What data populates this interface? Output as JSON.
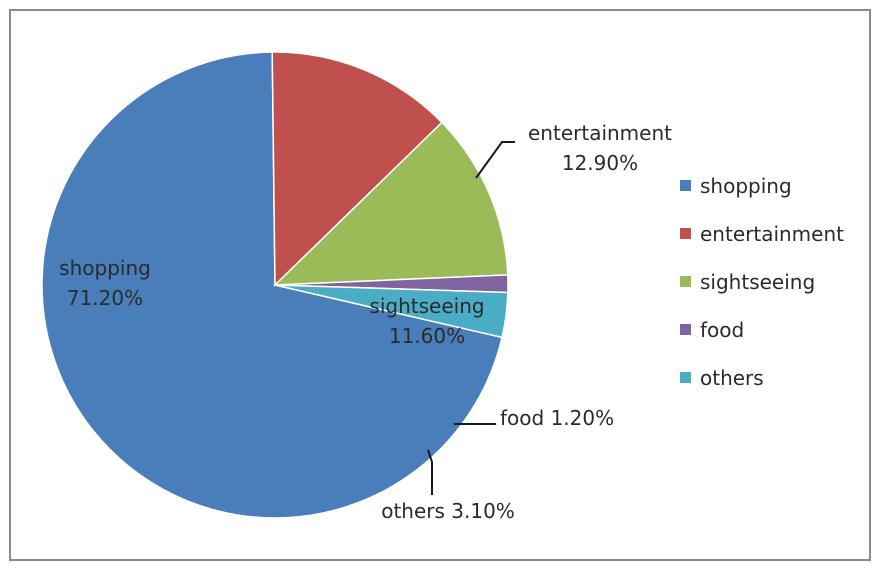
{
  "chart_data": {
    "type": "pie",
    "title": "",
    "slices": [
      {
        "label": "shopping",
        "value": 71.2,
        "display": "71.20%",
        "color": "#4a7ebb"
      },
      {
        "label": "entertainment",
        "value": 12.9,
        "display": "12.90%",
        "color": "#c0504d"
      },
      {
        "label": "sightseeing",
        "value": 11.6,
        "display": "11.60%",
        "color": "#9bbb59"
      },
      {
        "label": "food",
        "value": 1.2,
        "display": "1.20%",
        "color": "#8064a2"
      },
      {
        "label": "others",
        "value": 3.1,
        "display": "3.10%",
        "color": "#4bacc6"
      }
    ],
    "legend": {
      "position": "right",
      "entries": [
        "shopping",
        "entertainment",
        "sightseeing",
        "food",
        "others"
      ]
    }
  }
}
